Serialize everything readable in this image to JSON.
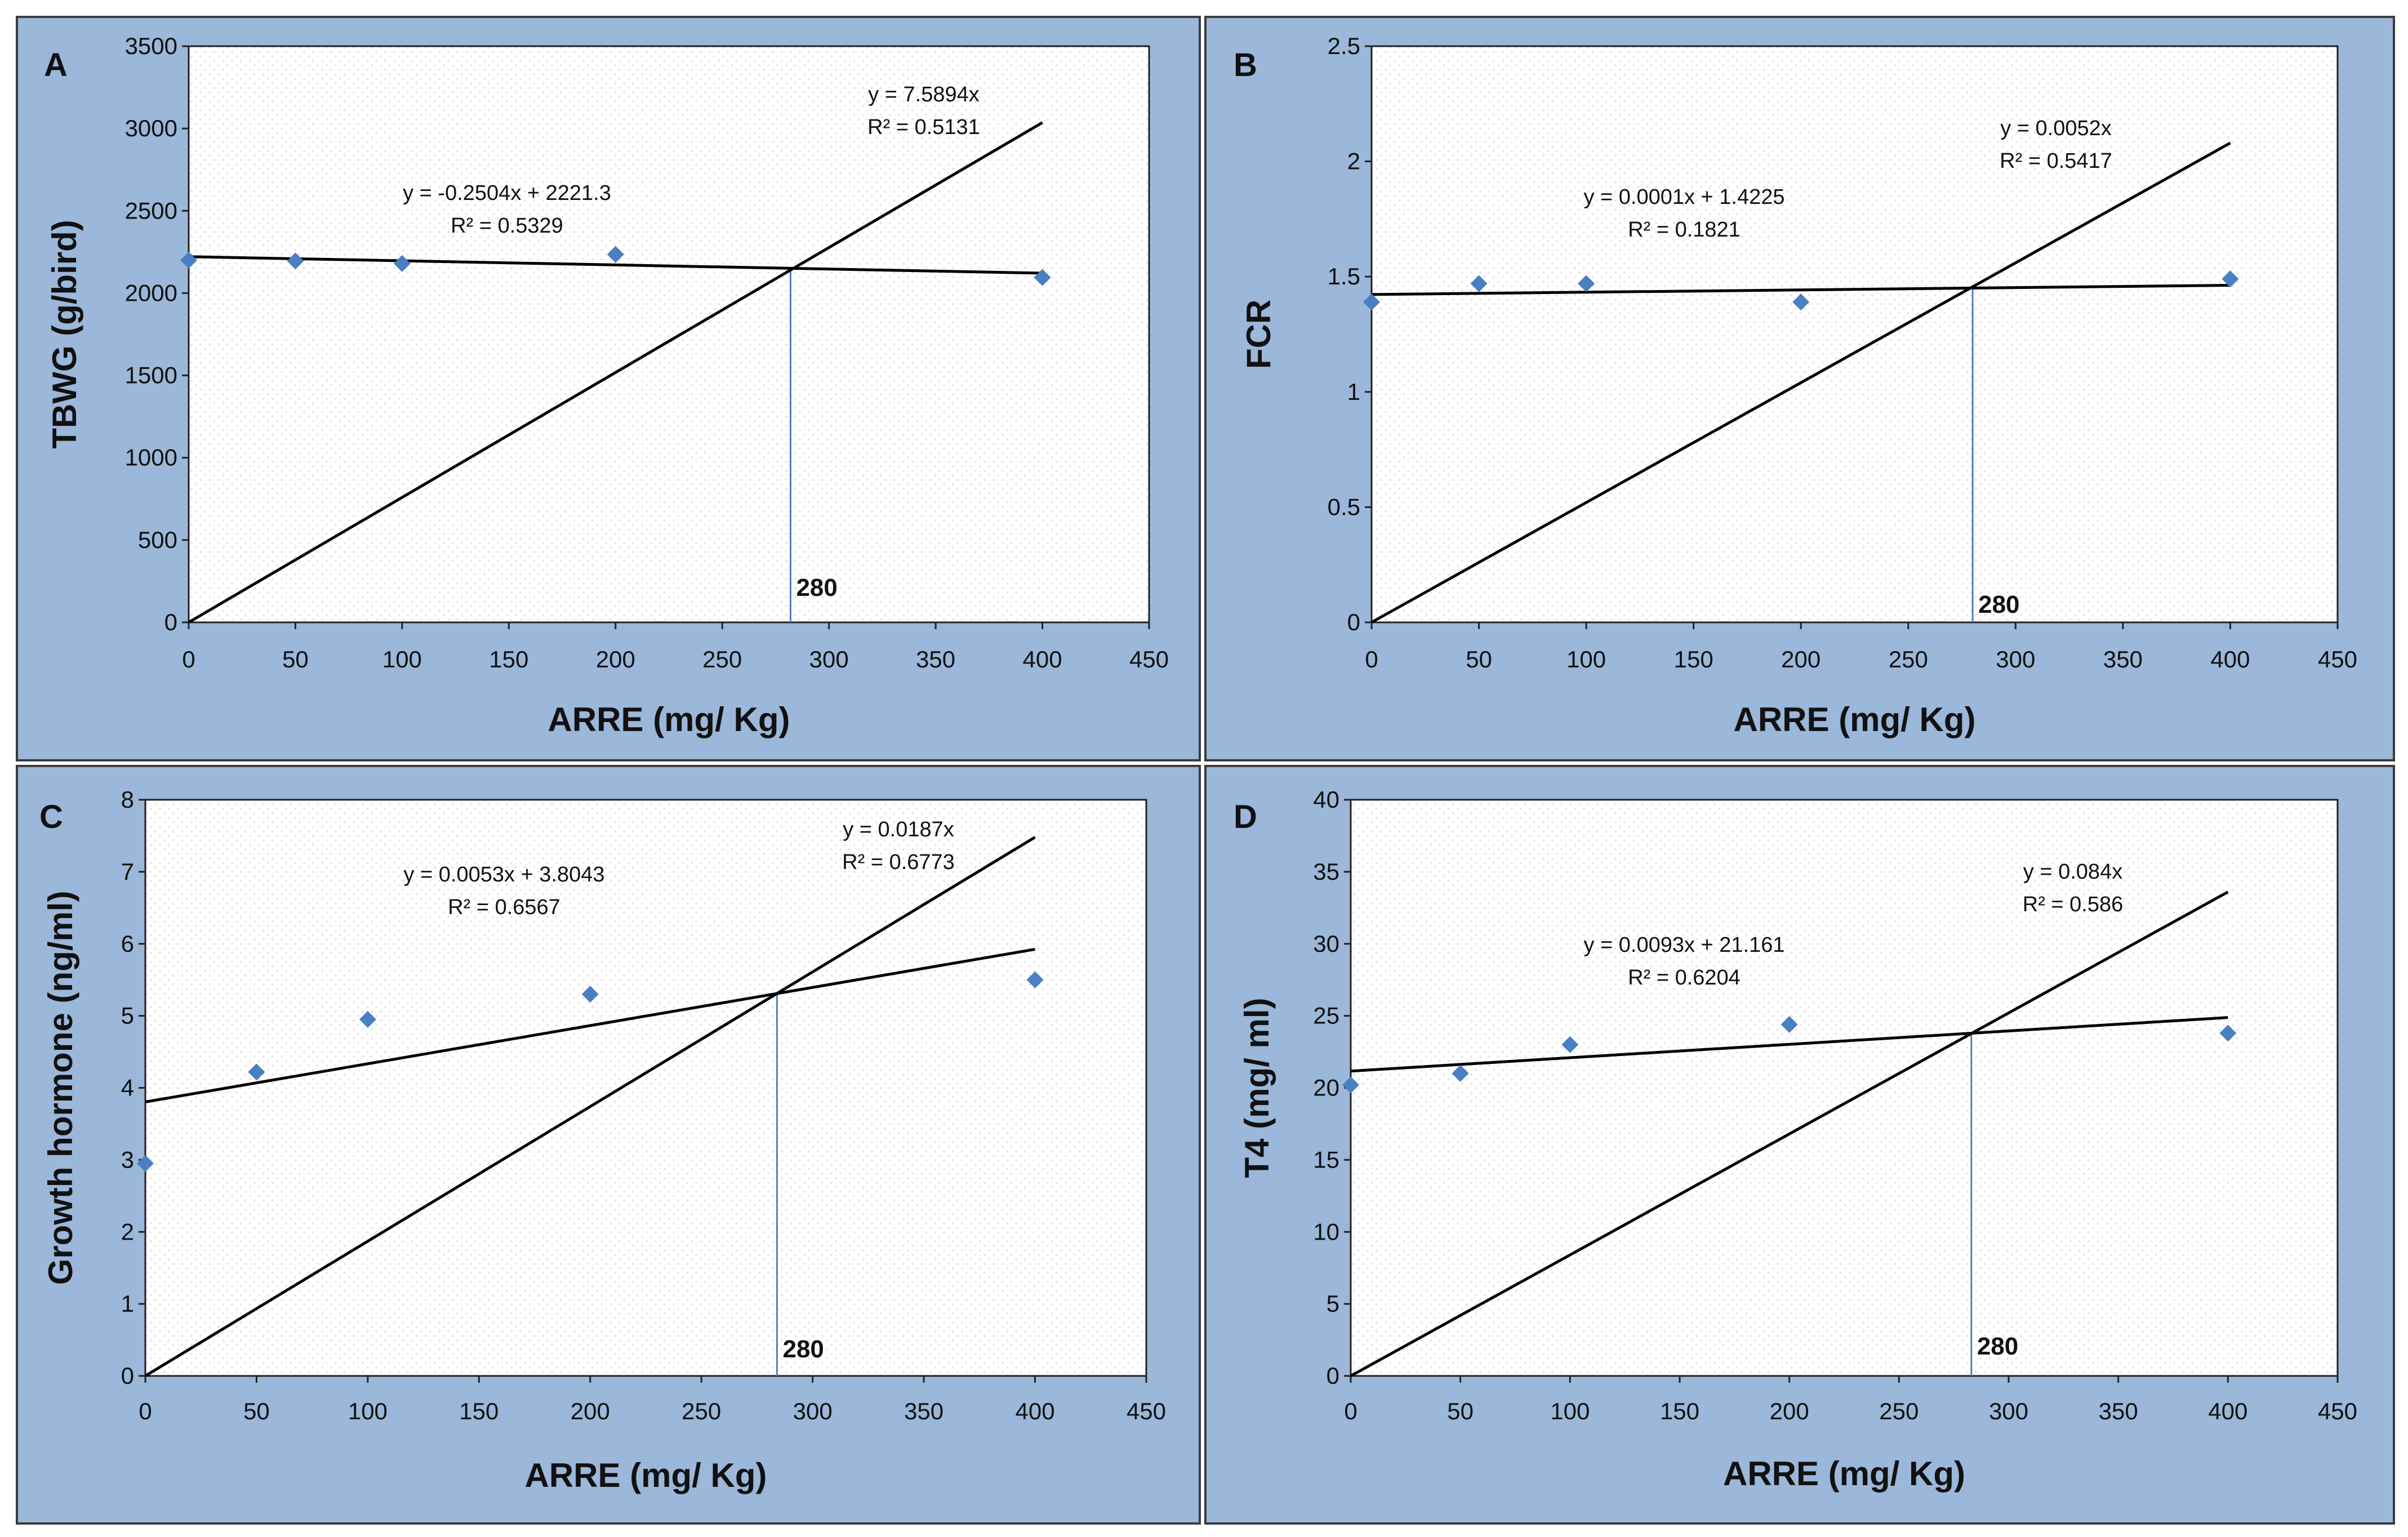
{
  "colors": {
    "panel": "#9bb7d9",
    "point": "#4a7fc1",
    "line": "#000000",
    "cutoff": "#4f7fbf"
  },
  "chart_data": [
    {
      "type": "scatter",
      "panel": "A",
      "xlabel": "ARRE (mg/ Kg)",
      "ylabel": "TBWG (g/bird)",
      "xlim": [
        0,
        450
      ],
      "ylim": [
        0,
        3500
      ],
      "xticks": [
        0,
        50,
        100,
        150,
        200,
        250,
        300,
        350,
        400,
        450
      ],
      "yticks": [
        0,
        500,
        1000,
        1500,
        2000,
        2500,
        3000,
        3500
      ],
      "points": [
        {
          "x": 0,
          "y": 2200
        },
        {
          "x": 50,
          "y": 2195
        },
        {
          "x": 100,
          "y": 2180
        },
        {
          "x": 200,
          "y": 2235
        },
        {
          "x": 400,
          "y": 2095
        }
      ],
      "fit_linear": {
        "slope": -0.2504,
        "intercept": 2221.3,
        "x_end": 400,
        "equation": "y = -0.2504x + 2221.3",
        "r2": "R² = 0.5329"
      },
      "fit_origin": {
        "slope": 7.5894,
        "x_end": 400,
        "equation": "y = 7.5894x",
        "r2": "R² = 0.5131"
      },
      "cutoff_x": 282,
      "cutoff_label": "280"
    },
    {
      "type": "scatter",
      "panel": "B",
      "xlabel": "ARRE (mg/ Kg)",
      "ylabel": "FCR",
      "xlim": [
        0,
        450
      ],
      "ylim": [
        0,
        2.5
      ],
      "xticks": [
        0,
        50,
        100,
        150,
        200,
        250,
        300,
        350,
        400,
        450
      ],
      "yticks": [
        0,
        0.5,
        1,
        1.5,
        2,
        2.5
      ],
      "points": [
        {
          "x": 0,
          "y": 1.39
        },
        {
          "x": 50,
          "y": 1.47
        },
        {
          "x": 100,
          "y": 1.47
        },
        {
          "x": 200,
          "y": 1.39
        },
        {
          "x": 400,
          "y": 1.49
        }
      ],
      "fit_linear": {
        "slope": 0.0001,
        "intercept": 1.4225,
        "x_end": 400,
        "equation": "y = 0.0001x + 1.4225",
        "r2": "R² = 0.1821"
      },
      "fit_origin": {
        "slope": 0.0052,
        "x_end": 400,
        "equation": "y = 0.0052x",
        "r2": "R² = 0.5417"
      },
      "cutoff_x": 280,
      "cutoff_label": "280"
    },
    {
      "type": "scatter",
      "panel": "C",
      "xlabel": "ARRE (mg/ Kg)",
      "ylabel": "Growth hormone (ng/ml)",
      "xlim": [
        0,
        450
      ],
      "ylim": [
        0,
        8
      ],
      "xticks": [
        0,
        50,
        100,
        150,
        200,
        250,
        300,
        350,
        400,
        450
      ],
      "yticks": [
        0,
        1,
        2,
        3,
        4,
        5,
        6,
        7,
        8
      ],
      "points": [
        {
          "x": 0,
          "y": 2.95
        },
        {
          "x": 50,
          "y": 4.22
        },
        {
          "x": 100,
          "y": 4.95
        },
        {
          "x": 200,
          "y": 5.3
        },
        {
          "x": 400,
          "y": 5.5
        }
      ],
      "fit_linear": {
        "slope": 0.0053,
        "intercept": 3.8043,
        "x_end": 400,
        "equation": "y = 0.0053x + 3.8043",
        "r2": "R² = 0.6567"
      },
      "fit_origin": {
        "slope": 0.0187,
        "x_end": 400,
        "equation": "y = 0.0187x",
        "r2": "R² = 0.6773"
      },
      "cutoff_x": 284,
      "cutoff_label": "280"
    },
    {
      "type": "scatter",
      "panel": "D",
      "xlabel": "ARRE (mg/ Kg)",
      "ylabel": "T4 (mg/ ml)",
      "xlim": [
        0,
        450
      ],
      "ylim": [
        0,
        40
      ],
      "xticks": [
        0,
        50,
        100,
        150,
        200,
        250,
        300,
        350,
        400,
        450
      ],
      "yticks": [
        0,
        5,
        10,
        15,
        20,
        25,
        30,
        35,
        40
      ],
      "points": [
        {
          "x": 0,
          "y": 20.2
        },
        {
          "x": 50,
          "y": 21.0
        },
        {
          "x": 100,
          "y": 23.0
        },
        {
          "x": 200,
          "y": 24.4
        },
        {
          "x": 400,
          "y": 23.8
        }
      ],
      "fit_linear": {
        "slope": 0.0093,
        "intercept": 21.161,
        "x_end": 400,
        "equation": "y = 0.0093x + 21.161",
        "r2": "R² = 0.6204"
      },
      "fit_origin": {
        "slope": 0.084,
        "x_end": 400,
        "equation": "y = 0.084x",
        "r2": "R² = 0.586"
      },
      "cutoff_x": 283,
      "cutoff_label": "280"
    }
  ]
}
